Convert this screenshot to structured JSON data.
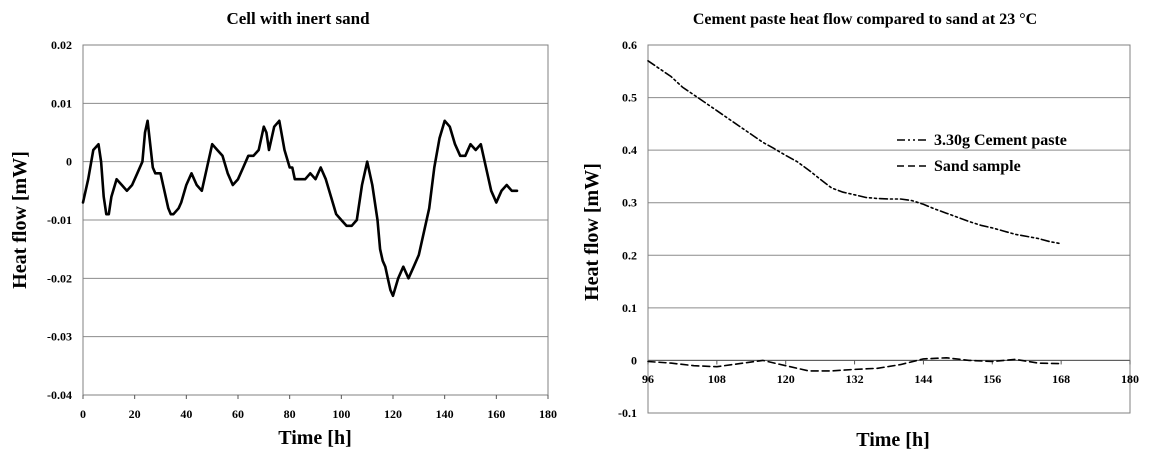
{
  "chart_data": [
    {
      "type": "line",
      "title": "Cell with inert sand",
      "xlabel": "Time [h]",
      "ylabel": "Heat flow [mW]",
      "xlim": [
        0,
        180
      ],
      "ylim": [
        -0.04,
        0.02
      ],
      "xticks": [
        "0",
        "20",
        "40",
        "60",
        "80",
        "100",
        "120",
        "140",
        "160",
        "180"
      ],
      "yticks": [
        "0.02",
        "0.01",
        "0",
        "-0.01",
        "-0.02",
        "-0.03",
        "-0.04"
      ],
      "grid": "horizontal",
      "series": [
        {
          "line_style": "solid",
          "color": "#000000",
          "x": [
            0,
            2,
            4,
            6,
            7,
            8,
            9,
            10,
            11,
            13,
            15,
            17,
            19,
            21,
            23,
            24,
            25,
            26,
            27,
            28,
            30,
            31,
            33,
            34,
            35,
            37,
            38,
            40,
            42,
            44,
            46,
            48,
            50,
            52,
            54,
            56,
            58,
            60,
            62,
            64,
            66,
            68,
            70,
            71,
            72,
            74,
            76,
            78,
            80,
            81,
            82,
            84,
            86,
            88,
            90,
            92,
            94,
            96,
            98,
            100,
            102,
            104,
            106,
            108,
            110,
            112,
            114,
            115,
            116,
            117,
            118,
            119,
            120,
            122,
            124,
            126,
            128,
            130,
            132,
            134,
            136,
            138,
            140,
            142,
            144,
            146,
            148,
            150,
            152,
            154,
            156,
            158,
            159,
            160,
            162,
            164,
            166,
            168
          ],
          "y": [
            -0.007,
            -0.003,
            0.002,
            0.003,
            0.0,
            -0.006,
            -0.009,
            -0.009,
            -0.006,
            -0.003,
            -0.004,
            -0.005,
            -0.004,
            -0.002,
            0.0,
            0.005,
            0.007,
            0.003,
            -0.001,
            -0.002,
            -0.002,
            -0.004,
            -0.008,
            -0.009,
            -0.009,
            -0.008,
            -0.007,
            -0.004,
            -0.002,
            -0.004,
            -0.005,
            -0.001,
            0.003,
            0.002,
            0.001,
            -0.002,
            -0.004,
            -0.003,
            -0.001,
            0.001,
            0.001,
            0.002,
            0.006,
            0.005,
            0.002,
            0.006,
            0.007,
            0.002,
            -0.001,
            -0.001,
            -0.003,
            -0.003,
            -0.003,
            -0.002,
            -0.003,
            -0.001,
            -0.003,
            -0.006,
            -0.009,
            -0.01,
            -0.011,
            -0.011,
            -0.01,
            -0.004,
            0.0,
            -0.004,
            -0.01,
            -0.015,
            -0.017,
            -0.018,
            -0.02,
            -0.022,
            -0.023,
            -0.02,
            -0.018,
            -0.02,
            -0.018,
            -0.016,
            -0.012,
            -0.008,
            -0.001,
            0.004,
            0.007,
            0.006,
            0.003,
            0.001,
            0.001,
            0.003,
            0.002,
            0.003,
            -0.001,
            -0.005,
            -0.006,
            -0.007,
            -0.005,
            -0.004,
            -0.005,
            -0.005
          ]
        }
      ]
    },
    {
      "type": "line",
      "title": "Cement paste heat flow compared to sand at 23 °C",
      "xlabel": "Time [h]",
      "ylabel": "Heat flow [mW]",
      "xlim": [
        96,
        180
      ],
      "ylim": [
        -0.1,
        0.6
      ],
      "xticks": [
        "96",
        "108",
        "120",
        "132",
        "144",
        "156",
        "168",
        "180"
      ],
      "yticks": [
        "0.6",
        "0.5",
        "0.4",
        "0.3",
        "0.2",
        "0.1",
        "0",
        "-0.1"
      ],
      "grid": "horizontal",
      "legend": "top-right",
      "series": [
        {
          "name": "3.30g Cement paste",
          "line_style": "dash-dot-dot",
          "color": "#000000",
          "x": [
            96,
            98,
            100,
            102,
            104,
            106,
            108,
            110,
            112,
            114,
            116,
            118,
            120,
            122,
            124,
            126,
            128,
            130,
            132,
            134,
            136,
            138,
            140,
            142,
            144,
            146,
            148,
            150,
            152,
            154,
            156,
            158,
            160,
            162,
            164,
            166,
            168
          ],
          "y": [
            0.57,
            0.555,
            0.54,
            0.52,
            0.505,
            0.49,
            0.475,
            0.46,
            0.445,
            0.43,
            0.415,
            0.403,
            0.39,
            0.378,
            0.362,
            0.345,
            0.328,
            0.32,
            0.315,
            0.31,
            0.308,
            0.307,
            0.307,
            0.304,
            0.297,
            0.288,
            0.28,
            0.272,
            0.264,
            0.257,
            0.252,
            0.246,
            0.24,
            0.236,
            0.232,
            0.226,
            0.222
          ]
        },
        {
          "name": "Sand sample",
          "line_style": "dashed",
          "color": "#000000",
          "x": [
            96,
            100,
            104,
            108,
            112,
            116,
            120,
            124,
            128,
            132,
            136,
            140,
            144,
            148,
            152,
            156,
            160,
            164,
            168
          ],
          "y": [
            -0.002,
            -0.005,
            -0.01,
            -0.012,
            -0.006,
            0.0,
            -0.01,
            -0.02,
            -0.02,
            -0.017,
            -0.015,
            -0.008,
            0.003,
            0.005,
            0.0,
            -0.002,
            0.002,
            -0.005,
            -0.006
          ]
        }
      ]
    }
  ]
}
